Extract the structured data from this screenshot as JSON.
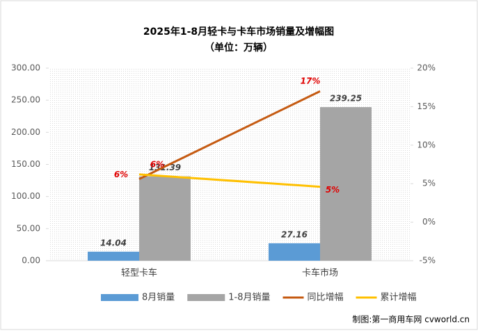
{
  "chart_data": {
    "type": "bar",
    "title": "2025年1-8月轻卡与卡车市场销量及增幅图",
    "subtitle": "（单位：万辆）",
    "categories": [
      "轻型卡车",
      "卡车市场"
    ],
    "series": [
      {
        "name": "8月销量",
        "color": "#5b9bd5",
        "values": [
          14.04,
          27.16
        ]
      },
      {
        "name": "1-8月销量",
        "color": "#a5a5a5",
        "values": [
          131.39,
          239.25
        ]
      },
      {
        "name": "同比增幅",
        "type": "line",
        "axis": "y2",
        "color": "#c55a11",
        "values": [
          5.6,
          17
        ],
        "value_labels": [
          "6%",
          "17%"
        ]
      },
      {
        "name": "累计增幅",
        "type": "line",
        "axis": "y2",
        "color": "#ffc000",
        "values": [
          6.2,
          4.6
        ],
        "value_labels": [
          "6%",
          "5%"
        ]
      }
    ],
    "ylim": [
      0,
      300
    ],
    "yticks": [
      {
        "value": 0,
        "label": "0.00"
      },
      {
        "value": 50,
        "label": "50.00"
      },
      {
        "value": 100,
        "label": "100.00"
      },
      {
        "value": 150,
        "label": "150.00"
      },
      {
        "value": 200,
        "label": "200.00"
      },
      {
        "value": 250,
        "label": "250.00"
      },
      {
        "value": 300,
        "label": "300.00"
      }
    ],
    "y2lim": [
      -5,
      20
    ],
    "y2ticks": [
      {
        "value": -5,
        "label": "-5%"
      },
      {
        "value": 0,
        "label": "0%"
      },
      {
        "value": 5,
        "label": "5%"
      },
      {
        "value": 10,
        "label": "10%"
      },
      {
        "value": 15,
        "label": "15%"
      },
      {
        "value": 20,
        "label": "20%"
      }
    ],
    "legend": "bottom",
    "source": "制图:第一商用车网 cvworld.cn"
  }
}
